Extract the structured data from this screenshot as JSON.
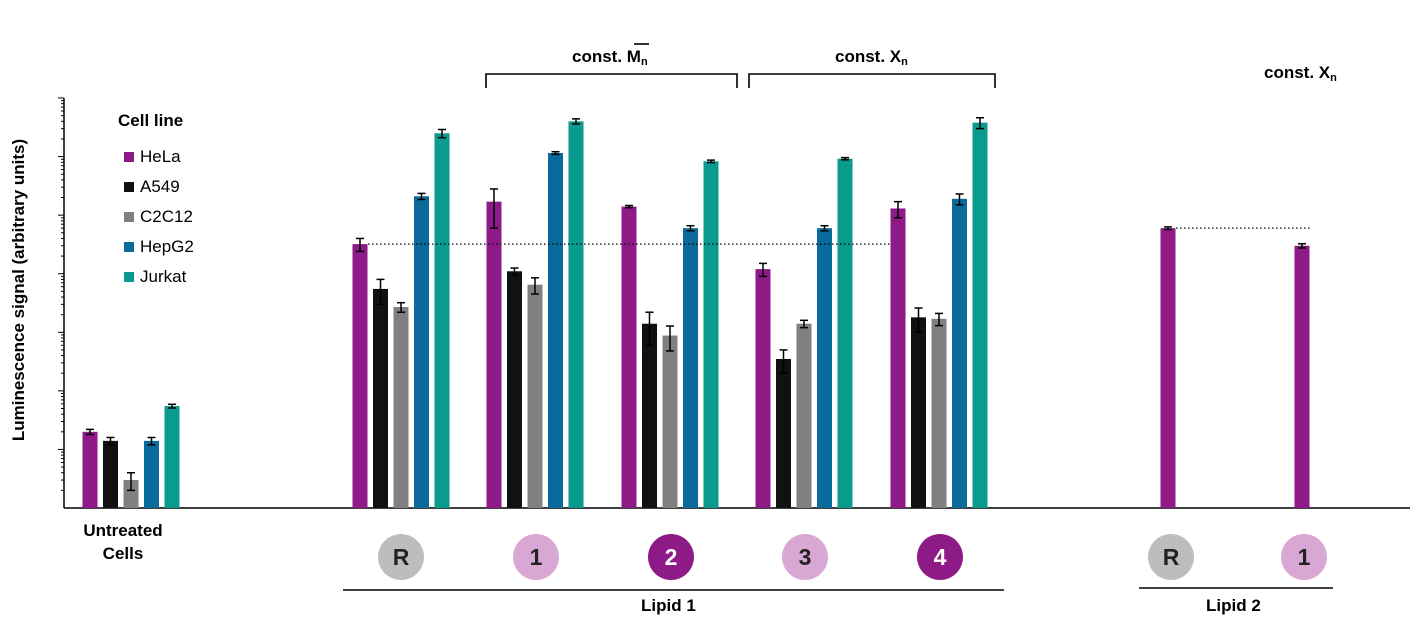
{
  "chart_data": {
    "type": "bar",
    "ylabel": "Luminescence signal (arbitrary units)",
    "yscale": "log",
    "ylim": [
      1,
      10000000
    ],
    "legend": {
      "title": "Cell line",
      "position": "top-left",
      "items": [
        "HeLa",
        "A549",
        "C2C12",
        "HepG2",
        "Jurkat"
      ]
    },
    "colors": {
      "HeLa": "#8e1a87",
      "A549": "#111111",
      "C2C12": "#808080",
      "HepG2": "#0b6a9c",
      "Jurkat": "#0a9b8f"
    },
    "categories": [
      "Untreated Cells",
      "R",
      "1",
      "2",
      "3",
      "4",
      "R",
      "1"
    ],
    "series": [
      {
        "name": "HeLa",
        "values": [
          20,
          32000,
          170000,
          140000,
          12000,
          130000,
          60000,
          30000
        ],
        "errors": [
          2,
          8000,
          110000,
          6000,
          3000,
          40000,
          3000,
          2500
        ]
      },
      {
        "name": "A549",
        "values": [
          14,
          5500,
          11000,
          1400,
          350,
          1800,
          null,
          null
        ],
        "errors": [
          2,
          2500,
          1500,
          800,
          150,
          800,
          null,
          null
        ]
      },
      {
        "name": "C2C12",
        "values": [
          3,
          2700,
          6500,
          880,
          1400,
          1700,
          null,
          null
        ],
        "errors": [
          1,
          500,
          2000,
          400,
          200,
          400,
          null,
          null
        ]
      },
      {
        "name": "HepG2",
        "values": [
          14,
          210000,
          1150000,
          60000,
          60000,
          190000,
          null,
          null
        ],
        "errors": [
          2,
          25000,
          60000,
          6000,
          6000,
          40000,
          null,
          null
        ]
      },
      {
        "name": "Jurkat",
        "values": [
          55,
          2500000,
          4000000,
          830000,
          920000,
          3800000,
          null,
          null
        ],
        "errors": [
          4,
          400000,
          400000,
          40000,
          40000,
          800000,
          null,
          null
        ]
      }
    ],
    "reference_lines": [
      32000,
      60000
    ],
    "annotations": {
      "untreated_label": "Untreated Cells",
      "circle_labels": [
        "R",
        "1",
        "2",
        "3",
        "4",
        "R",
        "1"
      ],
      "bracket_left": "const. Mn",
      "bracket_right": "const. Xn",
      "lipid2_header": "const. Xn",
      "group_lipid1": "Lipid 1",
      "group_lipid2": "Lipid 2"
    }
  },
  "headers": {
    "mn_main": "const. M",
    "mn_sub": "n",
    "xn_main": "const. X",
    "xn_sub": "n",
    "xn2_main": "const. X",
    "xn2_sub": "n"
  },
  "groups": {
    "lipid1": "Lipid 1",
    "lipid2": "Lipid 2"
  },
  "untreated": {
    "line1": "Untreated",
    "line2": "Cells"
  },
  "circles": {
    "c_r1": "R",
    "c_1": "1",
    "c_2": "2",
    "c_3": "3",
    "c_4": "4",
    "c_r2": "R",
    "c_1b": "1",
    "colors": {
      "grey": "#bdbdbd",
      "light": "#d9a7d3",
      "dark": "#8e1a87"
    }
  }
}
